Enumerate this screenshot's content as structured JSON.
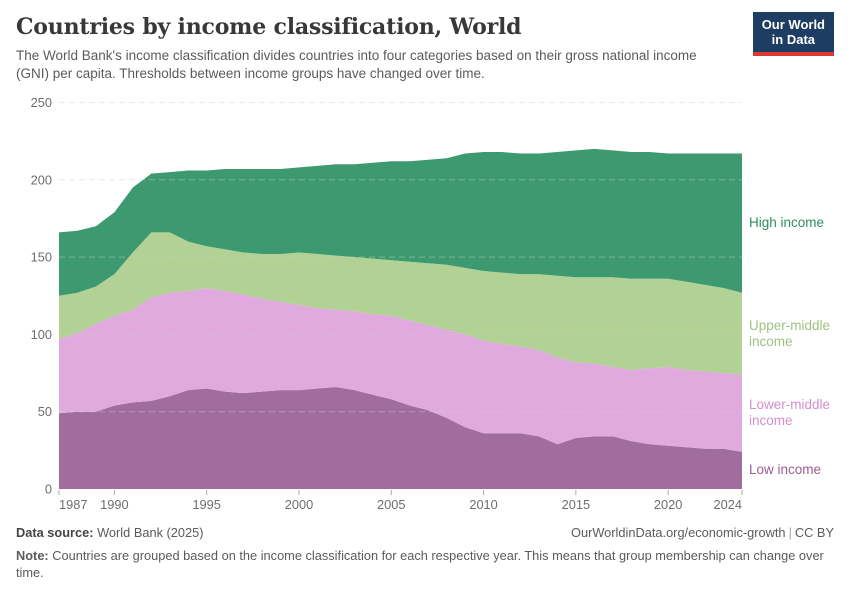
{
  "header": {
    "title": "Countries by income classification, World",
    "subtitle": "The World Bank's income classification divides countries into four categories based on their gross national income (GNI) per capita. Thresholds between income groups have changed over time.",
    "logo": {
      "line1": "Our World",
      "line2": "in Data",
      "bg_color": "#1d3d63",
      "accent_color": "#d93a34"
    }
  },
  "chart_data": {
    "type": "area",
    "stacked": true,
    "title": "Countries by income classification, World",
    "xlabel": "",
    "ylabel": "",
    "ylim": [
      0,
      250
    ],
    "yticks": [
      0,
      50,
      100,
      150,
      200,
      250
    ],
    "xticks": [
      1987,
      1990,
      1995,
      2000,
      2005,
      2010,
      2015,
      2020,
      2024
    ],
    "grid": true,
    "legend_position": "right",
    "x": [
      1987,
      1988,
      1989,
      1990,
      1991,
      1992,
      1993,
      1994,
      1995,
      1996,
      1997,
      1998,
      1999,
      2000,
      2001,
      2002,
      2003,
      2004,
      2005,
      2006,
      2007,
      2008,
      2009,
      2010,
      2011,
      2012,
      2013,
      2014,
      2015,
      2016,
      2017,
      2018,
      2019,
      2020,
      2021,
      2022,
      2023,
      2024
    ],
    "series": [
      {
        "name": "Low income",
        "color": "#a06d9e",
        "label_color": "#9c5b95",
        "values": [
          49,
          50,
          50,
          54,
          56,
          57,
          60,
          64,
          65,
          63,
          62,
          63,
          64,
          64,
          65,
          66,
          64,
          61,
          58,
          54,
          51,
          46,
          40,
          36,
          36,
          36,
          34,
          29,
          33,
          34,
          34,
          31,
          29,
          28,
          27,
          26,
          26,
          24
        ]
      },
      {
        "name": "Lower-middle income",
        "color": "#e0aade",
        "label_color": "#d48fcd",
        "values": [
          48,
          51,
          57,
          58,
          60,
          67,
          67,
          64,
          65,
          65,
          64,
          60,
          57,
          55,
          52,
          50,
          51,
          52,
          54,
          55,
          55,
          57,
          60,
          60,
          58,
          56,
          56,
          56,
          49,
          47,
          45,
          46,
          49,
          51,
          50,
          50,
          49,
          50
        ]
      },
      {
        "name": "Upper-middle income",
        "color": "#b2d194",
        "label_color": "#a0c181",
        "values": [
          28,
          26,
          24,
          27,
          37,
          42,
          39,
          32,
          27,
          27,
          27,
          29,
          31,
          34,
          35,
          35,
          35,
          36,
          36,
          38,
          40,
          42,
          43,
          45,
          46,
          47,
          49,
          53,
          55,
          56,
          58,
          59,
          58,
          57,
          57,
          56,
          55,
          53
        ]
      },
      {
        "name": "High income",
        "color": "#3d9a70",
        "label_color": "#2e8e63",
        "values": [
          41,
          40,
          39,
          40,
          42,
          38,
          39,
          46,
          49,
          52,
          54,
          55,
          55,
          55,
          57,
          59,
          60,
          62,
          64,
          65,
          67,
          69,
          74,
          77,
          78,
          78,
          78,
          80,
          82,
          83,
          82,
          82,
          82,
          81,
          83,
          85,
          87,
          90
        ]
      }
    ]
  },
  "footer": {
    "source_label": "Data source:",
    "source_text": " World Bank (2025)",
    "link_text": "OurWorldinData.org/economic-growth",
    "separator": "|",
    "license_text": "CC BY",
    "note_label": "Note:",
    "note_text": " Countries are grouped based on the income classification for each respective year. This means that group membership can change over time."
  }
}
